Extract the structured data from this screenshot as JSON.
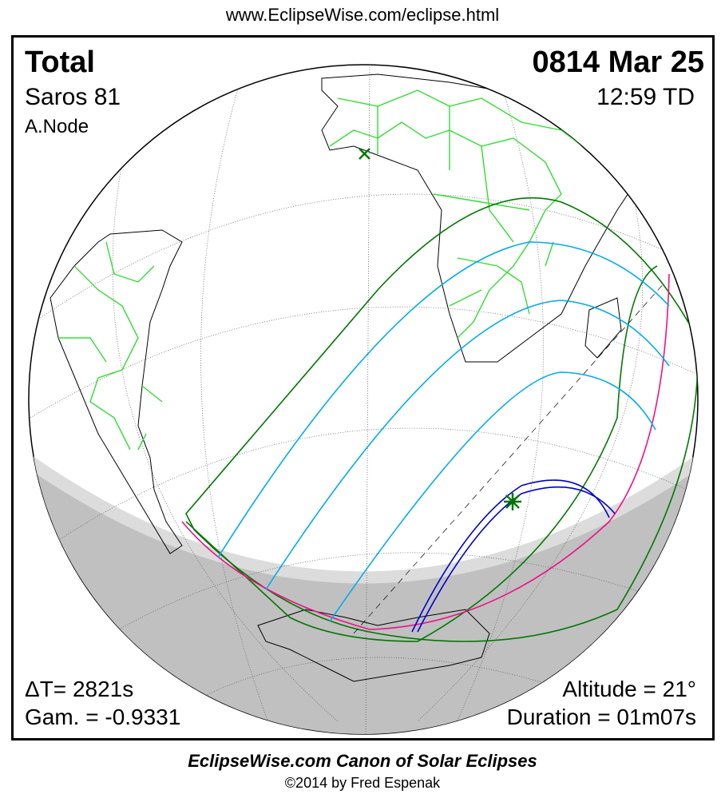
{
  "header_url": "www.EclipseWise.com/eclipse.html",
  "eclipse": {
    "type": "Total",
    "date": "0814 Mar 25",
    "saros": "Saros  81",
    "time": "12:59 TD",
    "node": "A.Node",
    "delta_t": "ΔT=   2821s",
    "gamma": "Gam. = -0.9331",
    "altitude": "Altitude = 21°",
    "duration": "Duration = 01m07s"
  },
  "footer": {
    "title": "EclipseWise.com Canon of Solar Eclipses",
    "copyright": "©2014 by Fred Espenak"
  },
  "colors": {
    "land": "#33dd33",
    "penumbra_limits": "#007700",
    "partial_curves": "#00aaee",
    "rise_set": "#ee1188",
    "totality_path": "#0000cc",
    "night": "#c0c0c0",
    "greatest_eclipse": "#007700"
  }
}
